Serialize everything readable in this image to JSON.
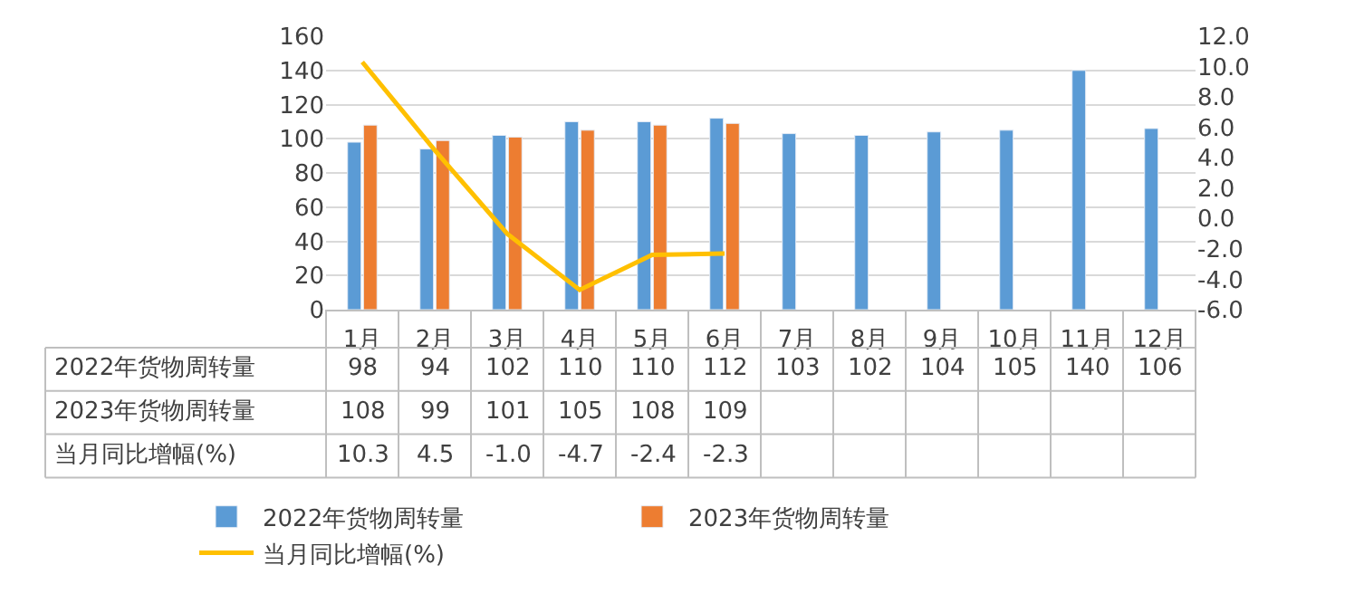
{
  "chart_data": {
    "type": "bar",
    "categories": [
      "1月",
      "2月",
      "3月",
      "4月",
      "5月",
      "6月",
      "7月",
      "8月",
      "9月",
      "10月",
      "11月",
      "12月"
    ],
    "series": [
      {
        "name": "2022年货物周转量",
        "color": "#5b9bd5",
        "values": [
          98,
          94,
          102,
          110,
          110,
          112,
          103,
          102,
          104,
          105,
          140,
          106
        ],
        "value_labels": [
          "98",
          "94",
          "102",
          "110",
          "110",
          "112",
          "103",
          "102",
          "104",
          "105",
          "140",
          "106"
        ]
      },
      {
        "name": "2023年货物周转量",
        "color": "#ed7d31",
        "values": [
          108,
          99,
          101,
          105,
          108,
          109,
          null,
          null,
          null,
          null,
          null,
          null
        ],
        "value_labels": [
          "108",
          "99",
          "101",
          "105",
          "108",
          "109",
          null,
          null,
          null,
          null,
          null,
          null
        ]
      },
      {
        "name": "当月同比增幅(%)",
        "type": "line",
        "axis": "y2",
        "color": "#ffc000",
        "values": [
          10.3,
          4.5,
          -1.0,
          -4.7,
          -2.4,
          -2.3,
          null,
          null,
          null,
          null,
          null,
          null
        ],
        "value_labels": [
          "10.3",
          "4.5",
          "-1.0",
          "-4.7",
          "-2.4",
          "-2.3",
          null,
          null,
          null,
          null,
          null,
          null
        ]
      }
    ],
    "ylim": [
      0,
      160
    ],
    "yticks": [
      0,
      20,
      40,
      60,
      80,
      100,
      120,
      140,
      160
    ],
    "y2lim": [
      -6,
      12
    ],
    "y2ticks": [
      {
        "value": -6,
        "label": "-6.0"
      },
      {
        "value": -4,
        "label": "-4.0"
      },
      {
        "value": -2,
        "label": "-2.0"
      },
      {
        "value": 0,
        "label": "0.0"
      },
      {
        "value": 2,
        "label": "2.0"
      },
      {
        "value": 4,
        "label": "4.0"
      },
      {
        "value": 6,
        "label": "6.0"
      },
      {
        "value": 8,
        "label": "8.0"
      },
      {
        "value": 10,
        "label": "10.0"
      },
      {
        "value": 12,
        "label": "12.0"
      }
    ],
    "grid": "y",
    "legend": "bottom"
  }
}
